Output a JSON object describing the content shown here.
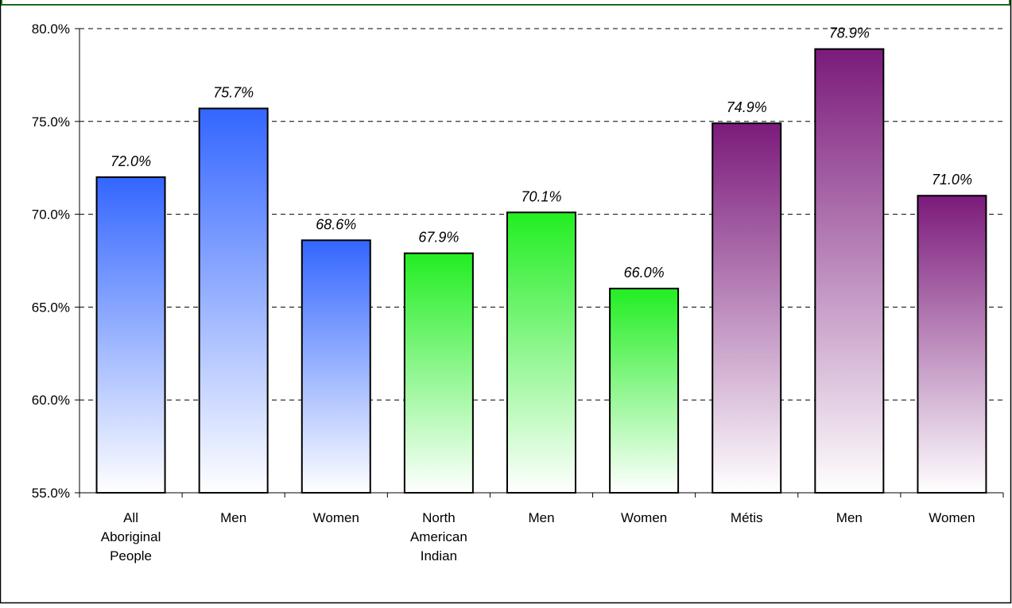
{
  "chart_data": {
    "type": "bar",
    "title": "",
    "xlabel": "",
    "ylabel": "",
    "ylim": [
      55,
      80
    ],
    "yticks": [
      55,
      60,
      65,
      70,
      75,
      80
    ],
    "ytick_labels": [
      "55.0%",
      "60.0%",
      "65.0%",
      "70.0%",
      "75.0%",
      "80.0%"
    ],
    "grid": "horizontal dashed",
    "legend": "none",
    "categories": [
      [
        "All",
        "Aboriginal",
        "People"
      ],
      [
        "Men"
      ],
      [
        "Women"
      ],
      [
        "North",
        "American",
        "Indian"
      ],
      [
        "Men"
      ],
      [
        "Women"
      ],
      [
        "Métis"
      ],
      [
        "Men"
      ],
      [
        "Women"
      ]
    ],
    "values": [
      72.0,
      75.7,
      68.6,
      67.9,
      70.1,
      66.0,
      74.9,
      78.9,
      71.0
    ],
    "data_labels": [
      "72.0%",
      "75.7%",
      "68.6%",
      "67.9%",
      "70.1%",
      "66.0%",
      "74.9%",
      "78.9%",
      "71.0%"
    ],
    "bar_groups": [
      "blue",
      "blue",
      "blue",
      "green",
      "green",
      "green",
      "purple",
      "purple",
      "purple"
    ],
    "colors": {
      "blue": "#3366ff",
      "green": "#22ee22",
      "purple": "#7b1a7b",
      "frame_border": "#000000",
      "title_bar_border": "#1a6b1a"
    }
  }
}
